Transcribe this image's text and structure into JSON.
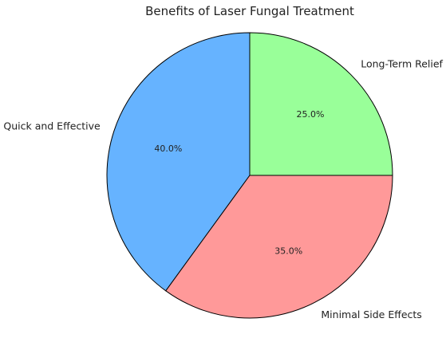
{
  "chart_data": {
    "type": "pie",
    "title": "Benefits of Laser Fungal Treatment",
    "start_angle_deg": 90,
    "direction": "counterclockwise",
    "slices": [
      {
        "label": "Quick and Effective",
        "value": 40.0,
        "pct_label": "40.0%",
        "color": "#66b3ff"
      },
      {
        "label": "Minimal Side Effects",
        "value": 35.0,
        "pct_label": "35.0%",
        "color": "#ff9999"
      },
      {
        "label": "Long-Term Relief",
        "value": 25.0,
        "pct_label": "25.0%",
        "color": "#99ff99"
      }
    ],
    "edge_color": "#000000"
  }
}
